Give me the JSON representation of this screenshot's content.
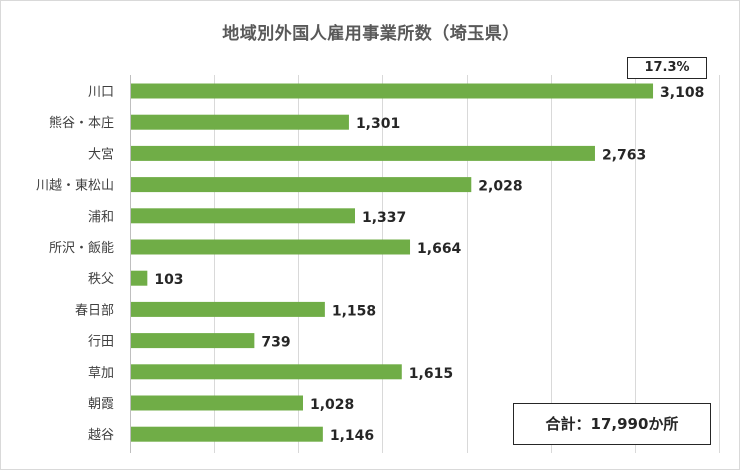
{
  "chart_data": {
    "type": "bar",
    "orientation": "horizontal",
    "title": "地域別外国人雇用事業所数（埼玉県）",
    "categories": [
      "川口",
      "熊谷・本庄",
      "大宮",
      "川越・東松山",
      "浦和",
      "所沢・飯能",
      "秩父",
      "春日部",
      "行田",
      "草加",
      "朝霞",
      "越谷"
    ],
    "values": [
      3108,
      1301,
      2763,
      2028,
      1337,
      1664,
      103,
      1158,
      739,
      1615,
      1028,
      1146
    ],
    "value_labels": [
      "3,108",
      "1,301",
      "2,763",
      "2,028",
      "1,337",
      "1,664",
      "103",
      "1,158",
      "739",
      "1,615",
      "1,028",
      "1,146"
    ],
    "xlim": [
      0,
      3500
    ],
    "grid": true,
    "bar_color": "#70ad47",
    "annotations": {
      "share": "17.3%",
      "total": "合計：17,990か所"
    }
  }
}
